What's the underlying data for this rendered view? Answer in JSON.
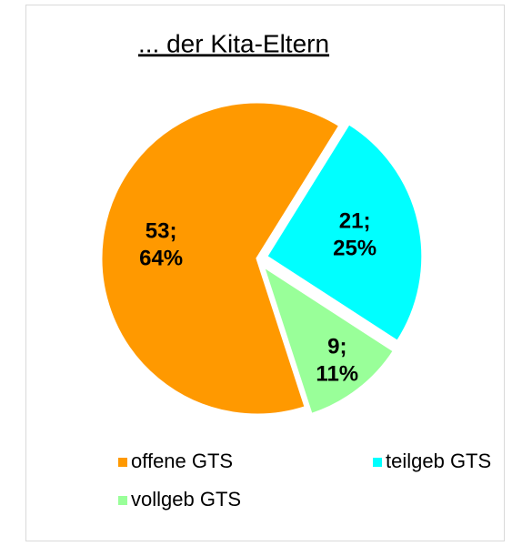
{
  "chart_data": {
    "type": "pie",
    "title": "... der Kita-Eltern",
    "categories": [
      "offene GTS",
      "teilgeb GTS",
      "vollgeb GTS"
    ],
    "values": [
      53,
      21,
      9
    ],
    "value_labels": [
      "53;",
      "21;",
      "9;"
    ],
    "percents": [
      64,
      25,
      11
    ],
    "percent_labels": [
      "64%",
      "25%",
      "11%"
    ],
    "colors": [
      "#ff9900",
      "#00ffff",
      "#99ff99"
    ],
    "legend": "bottom"
  }
}
